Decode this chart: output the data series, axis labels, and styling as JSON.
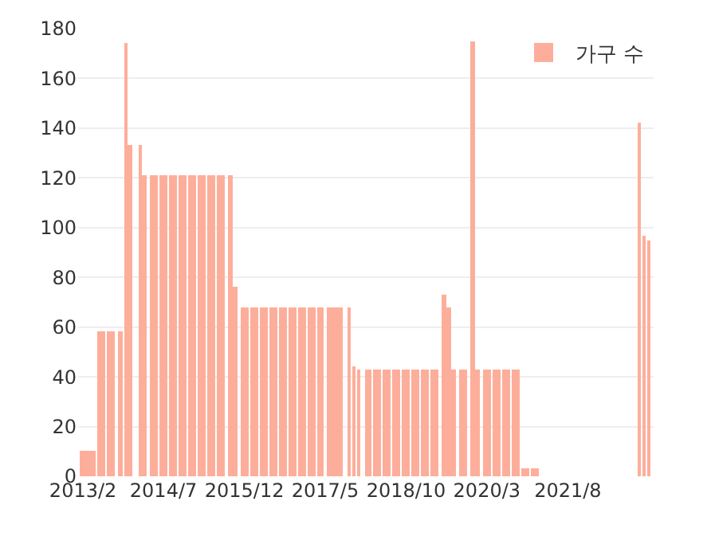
{
  "chart_data": {
    "type": "bar",
    "x": [
      "2013-02",
      "2013-04",
      "2013-06",
      "2013-08",
      "2013-10",
      "2013-11",
      "2013-12",
      "2014-02",
      "2014-03",
      "2014-05",
      "2014-07",
      "2014-09",
      "2014-11",
      "2015-01",
      "2015-03",
      "2015-05",
      "2015-07",
      "2015-09",
      "2015-10",
      "2015-12",
      "2016-02",
      "2016-04",
      "2016-06",
      "2016-08",
      "2016-10",
      "2016-12",
      "2017-02",
      "2017-04",
      "2017-06",
      "2017-08",
      "2017-10",
      "2017-11",
      "2017-12",
      "2018-02",
      "2018-04",
      "2018-06",
      "2018-08",
      "2018-10",
      "2018-12",
      "2019-02",
      "2019-04",
      "2019-06",
      "2019-07",
      "2019-08",
      "2019-10",
      "2019-12",
      "2020-01",
      "2020-03",
      "2020-05",
      "2020-07",
      "2020-09",
      "2020-11",
      "2021-01",
      "2022-11",
      "2022-12",
      "2023-01"
    ],
    "series": [
      {
        "name": "가구 수",
        "color": "#fdae9b",
        "values": [
          10,
          10,
          58,
          58,
          58,
          174,
          133,
          133,
          121,
          121,
          121,
          121,
          121,
          121,
          121,
          121,
          121,
          121,
          76,
          68,
          68,
          68,
          68,
          68,
          68,
          68,
          68,
          68,
          68,
          68,
          68,
          44,
          43,
          43,
          43,
          43,
          43,
          43,
          43,
          43,
          43,
          73,
          68,
          43,
          43,
          175,
          43,
          43,
          43,
          43,
          43,
          3,
          3,
          142,
          97,
          95
        ]
      }
    ],
    "xlim": [
      "2013-01",
      "2023-02"
    ],
    "xticks": [
      {
        "value": "2013-02",
        "label": "2013/2"
      },
      {
        "value": "2014-07",
        "label": "2014/7"
      },
      {
        "value": "2015-12",
        "label": "2015/12"
      },
      {
        "value": "2017-05",
        "label": "2017/5"
      },
      {
        "value": "2018-10",
        "label": "2018/10"
      },
      {
        "value": "2020-03",
        "label": "2020/3"
      },
      {
        "value": "2021-08",
        "label": "2021/8"
      }
    ],
    "ylim": [
      0,
      180
    ],
    "yticks": [
      0,
      20,
      40,
      60,
      80,
      100,
      120,
      140,
      160,
      180
    ],
    "grid": "y",
    "legend": "top right"
  }
}
